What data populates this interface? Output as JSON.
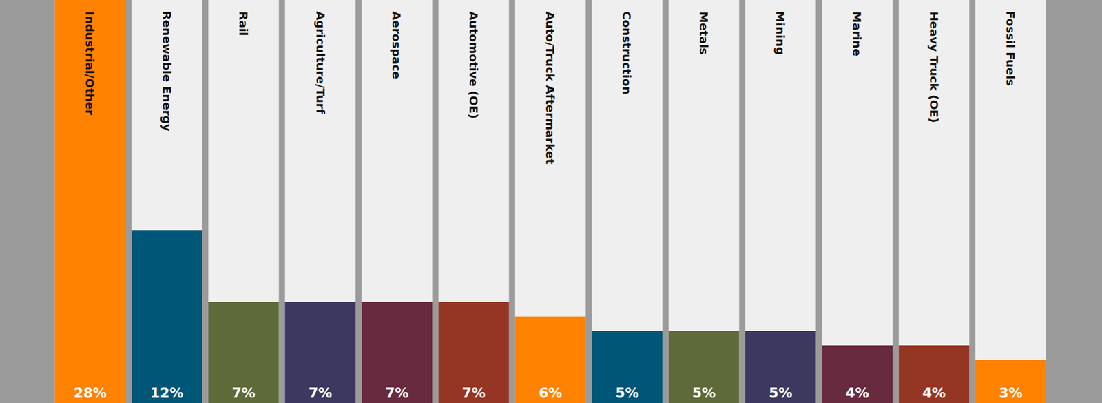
{
  "chart_data": {
    "type": "bar",
    "categories": [
      "Industrial/Other",
      "Renewable Energy",
      "Rail",
      "Agriculture/Turf",
      "Aerospace",
      "Automotive (OE)",
      "Auto/Truck Aftermarket",
      "Construction",
      "Metals",
      "Mining",
      "Marine",
      "Heavy Truck (OE)",
      "Fossil Fuels"
    ],
    "values": [
      28,
      12,
      7,
      7,
      7,
      7,
      6,
      5,
      5,
      5,
      4,
      4,
      3
    ],
    "value_labels": [
      "28%",
      "12%",
      "7%",
      "7%",
      "7%",
      "7%",
      "6%",
      "5%",
      "5%",
      "5%",
      "4%",
      "4%",
      "3%"
    ],
    "colors": [
      "#ff8200",
      "#005677",
      "#5e6a38",
      "#3d3860",
      "#672a3e",
      "#953524",
      "#ff8200",
      "#005677",
      "#5e6a38",
      "#3d3860",
      "#672a3e",
      "#953524",
      "#ff8200"
    ],
    "ylim": [
      0,
      28
    ],
    "data_labels": true,
    "tick_labels": false,
    "grid": false
  }
}
